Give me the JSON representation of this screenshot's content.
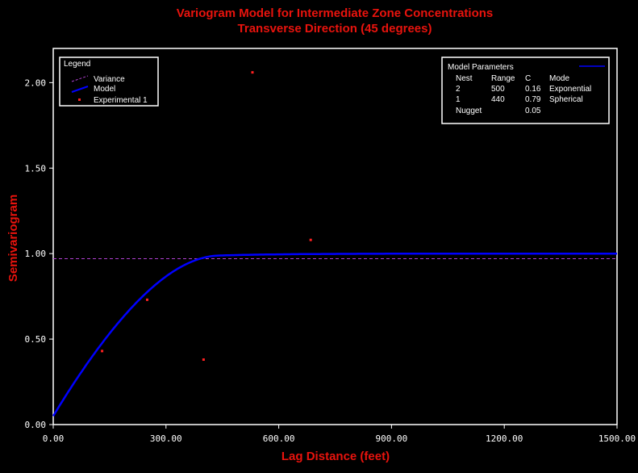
{
  "colors": {
    "background": "#000000",
    "title": "#e8130d",
    "axis": "#ffffff",
    "model": "#0000ff",
    "variance": "#b040d0",
    "experimental": "#ff2020"
  },
  "chart_data": {
    "type": "line",
    "title": "Variogram Model for Intermediate Zone Concentrations",
    "subtitle": "Transverse Direction (45 degrees)",
    "xlabel": "Lag Distance (feet)",
    "ylabel": "Semivariogram",
    "xlim": [
      0,
      1500
    ],
    "ylim": [
      0,
      2.2
    ],
    "x_ticks": [
      0,
      300,
      600,
      900,
      1200,
      1500
    ],
    "x_tick_labels": [
      "0.00",
      "300.00",
      "600.00",
      "900.00",
      "1200.00",
      "1500.00"
    ],
    "y_ticks": [
      0,
      0.5,
      1.0,
      1.5,
      2.0
    ],
    "y_tick_labels": [
      "0.00",
      "0.50",
      "1.00",
      "1.50",
      "2.00"
    ],
    "grid": false,
    "variance": 0.97,
    "model": {
      "nugget": 0.05,
      "nests": [
        {
          "type": "exponential",
          "range": 500,
          "c": 0.16
        },
        {
          "type": "spherical",
          "range": 440,
          "c": 0.79
        }
      ],
      "xmax": 1500
    },
    "experimental": {
      "x": [
        130,
        250,
        400,
        530,
        685
      ],
      "y": [
        0.43,
        0.73,
        0.38,
        2.06,
        1.08
      ]
    },
    "legend": {
      "position": "top-left",
      "title": "Legend",
      "entries": [
        "Variance",
        "Model",
        "Experimental 1"
      ]
    },
    "parameters_box": {
      "position": "top-right",
      "title": "Model Parameters",
      "headers": [
        "Nest",
        "Range",
        "C",
        "Mode"
      ],
      "rows": [
        [
          "2",
          "500",
          "0.16",
          "Exponential"
        ],
        [
          "1",
          "440",
          "0.79",
          "Spherical"
        ]
      ],
      "nugget_label": "Nugget",
      "nugget_value": "0.05"
    }
  }
}
